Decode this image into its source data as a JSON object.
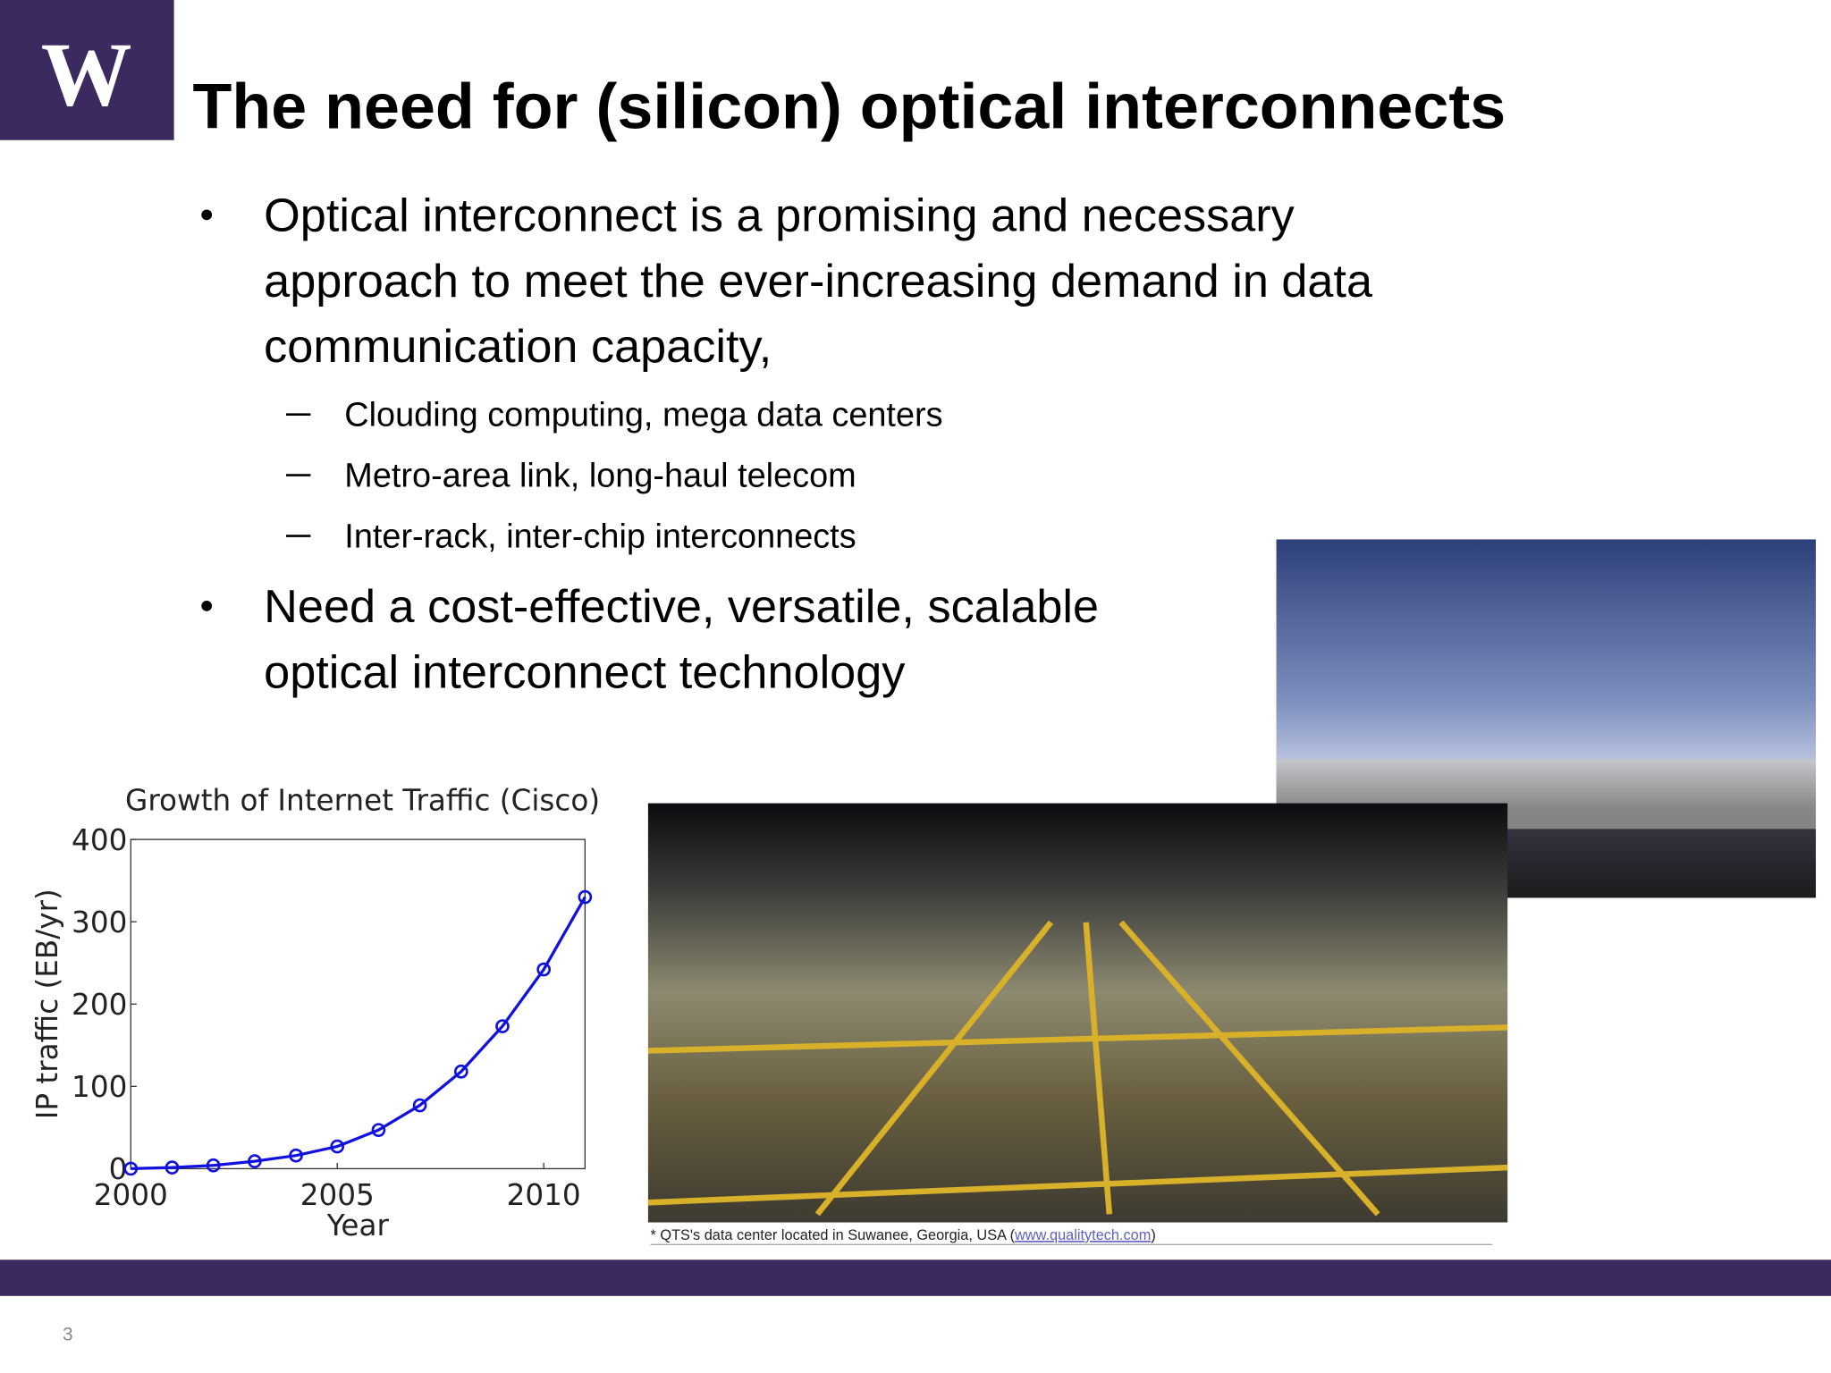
{
  "logo": "W",
  "header": {
    "title": "The need for (silicon) optical interconnects"
  },
  "bullets": [
    {
      "lines": [
        "Optical interconnect is a promising and necessary",
        "approach to meet the ever-increasing demand in data",
        "communication capacity,"
      ],
      "sub": [
        "Clouding computing, mega data centers",
        "Metro-area link, long-haul telecom",
        "Inter-rack, inter-chip interconnects"
      ]
    },
    {
      "lines": [
        "Need a cost-effective, versatile, scalable",
        "optical interconnect technology"
      ]
    }
  ],
  "caption": {
    "text": "* QTS's data center located in Suwanee, Georgia, USA (",
    "link": "www.qualitytech.com",
    "close": ")"
  },
  "page_number": "3",
  "chart_data": {
    "type": "line",
    "title": "Growth of Internet Traffic (Cisco)",
    "x_label": "Year",
    "y_label": "IP traffic (EB/yr)",
    "x": [
      2000,
      2001,
      2002,
      2003,
      2004,
      2005,
      2006,
      2007,
      2008,
      2009,
      2010,
      2011
    ],
    "values": [
      0,
      1.4,
      4,
      9,
      16,
      27,
      47,
      77,
      118,
      173,
      242,
      330
    ],
    "color": "#1010e0",
    "xlim": [
      2000,
      2011
    ],
    "ylim": [
      0,
      400
    ],
    "xticks": [
      2000,
      2005,
      2010
    ],
    "yticks": [
      0,
      100,
      200,
      300,
      400
    ]
  }
}
